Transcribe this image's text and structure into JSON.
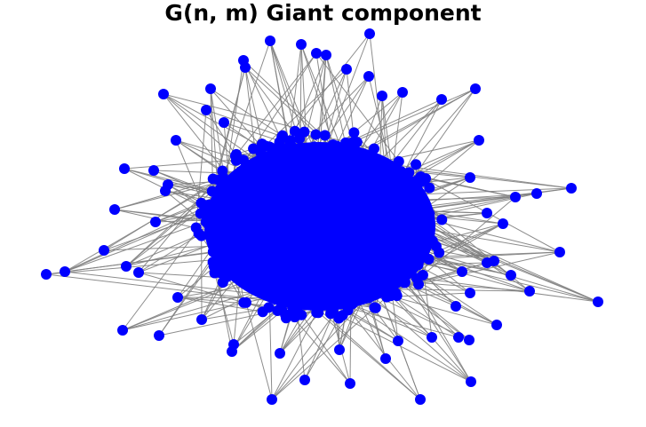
{
  "title": "G(n, m) Giant component",
  "graph": {
    "node_color": "#0000ff",
    "edge_color": "#808080",
    "directed": true
  }
}
